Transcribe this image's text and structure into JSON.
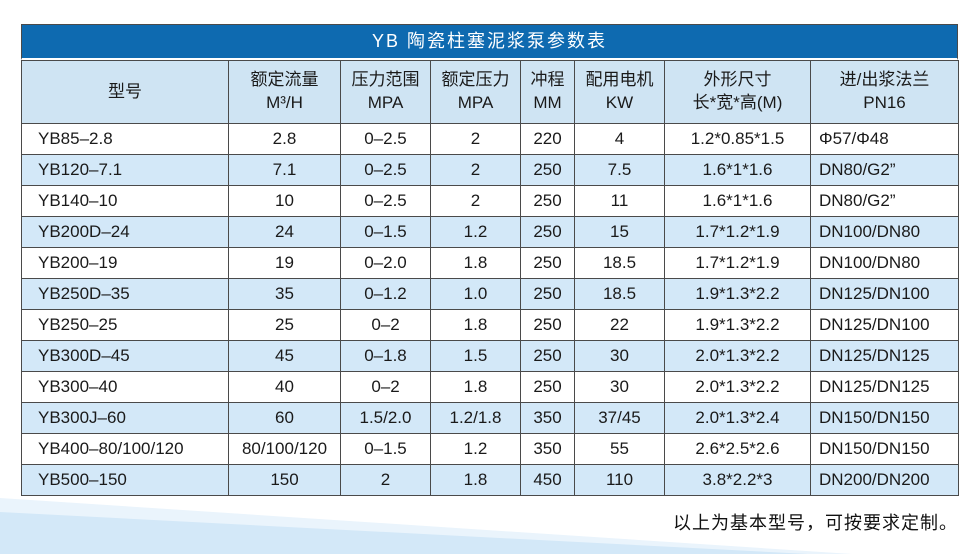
{
  "colors": {
    "title_bar_bg": "#0e6ab0",
    "title_text": "#ffffff",
    "header_bg": "#cfe4f3",
    "stripe_bg": "#d3e8f8",
    "grid_border": "#4a4a4a",
    "wedge_light": "#eaf4fc",
    "wedge_main": "#d3e8f8"
  },
  "table": {
    "title": "YB 陶瓷柱塞泥浆泵参数表",
    "columns": [
      {
        "line1": "型号",
        "line2": ""
      },
      {
        "line1": "额定流量",
        "line2": "M³/H"
      },
      {
        "line1": "压力范围",
        "line2": "MPA"
      },
      {
        "line1": "额定压力",
        "line2": "MPA"
      },
      {
        "line1": "冲程",
        "line2": "MM"
      },
      {
        "line1": "配用电机",
        "line2": "KW"
      },
      {
        "line1": "外形尺寸",
        "line2": "长*宽*高(M)"
      },
      {
        "line1": "进/出浆法兰",
        "line2": "PN16"
      }
    ],
    "rows": [
      [
        "YB85–2.8",
        "2.8",
        "0–2.5",
        "2",
        "220",
        "4",
        "1.2*0.85*1.5",
        "Φ57/Φ48"
      ],
      [
        "YB120–7.1",
        "7.1",
        "0–2.5",
        "2",
        "250",
        "7.5",
        "1.6*1*1.6",
        "DN80/G2”"
      ],
      [
        "YB140–10",
        "10",
        "0–2.5",
        "2",
        "250",
        "11",
        "1.6*1*1.6",
        "DN80/G2”"
      ],
      [
        "YB200D–24",
        "24",
        "0–1.5",
        "1.2",
        "250",
        "15",
        "1.7*1.2*1.9",
        "DN100/DN80"
      ],
      [
        "YB200–19",
        "19",
        "0–2.0",
        "1.8",
        "250",
        "18.5",
        "1.7*1.2*1.9",
        "DN100/DN80"
      ],
      [
        "YB250D–35",
        "35",
        "0–1.2",
        "1.0",
        "250",
        "18.5",
        "1.9*1.3*2.2",
        "DN125/DN100"
      ],
      [
        "YB250–25",
        "25",
        "0–2",
        "1.8",
        "250",
        "22",
        "1.9*1.3*2.2",
        "DN125/DN100"
      ],
      [
        "YB300D–45",
        "45",
        "0–1.8",
        "1.5",
        "250",
        "30",
        "2.0*1.3*2.2",
        "DN125/DN125"
      ],
      [
        "YB300–40",
        "40",
        "0–2",
        "1.8",
        "250",
        "30",
        "2.0*1.3*2.2",
        "DN125/DN125"
      ],
      [
        "YB300J–60",
        "60",
        "1.5/2.0",
        "1.2/1.8",
        "350",
        "37/45",
        "2.0*1.3*2.4",
        "DN150/DN150"
      ],
      [
        "YB400–80/100/120",
        "80/100/120",
        "0–1.5",
        "1.2",
        "350",
        "55",
        "2.6*2.5*2.6",
        "DN150/DN150"
      ],
      [
        "YB500–150",
        "150",
        "2",
        "1.8",
        "450",
        "110",
        "3.8*2.2*3",
        "DN200/DN200"
      ]
    ]
  },
  "footnote": "以上为基本型号，可按要求定制。"
}
